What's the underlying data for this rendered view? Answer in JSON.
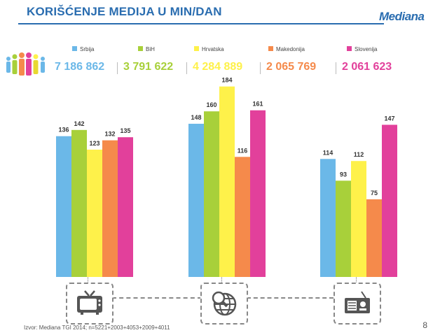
{
  "header": {
    "title": "KORIŠĆENJE MEDIJA U MIN/DAN",
    "logo_text": "Mediana"
  },
  "footer": {
    "source": "Izvor: Mediana TGI 2014; n=5221+2003+4053+2009+4011",
    "page_number": "8"
  },
  "colors": {
    "title": "#2a6db0",
    "Srbija": "#6bb8e8",
    "BiH": "#a8d03a",
    "Hrvatska": "#fef14a",
    "Makedonija": "#f58a4b",
    "Slovenija": "#e2409b"
  },
  "totals": [
    {
      "country": "Srbija",
      "value": "7 186 862"
    },
    {
      "country": "BiH",
      "value": "3 791 622"
    },
    {
      "country": "Hrvatska",
      "value": "4 284 889"
    },
    {
      "country": "Makedonija",
      "value": "2 065 769"
    },
    {
      "country": "Slovenija",
      "value": "2 061 623"
    }
  ],
  "media_icons": [
    "tv-icon",
    "internet-globe-icon",
    "radio-icon"
  ],
  "chart_data": {
    "type": "bar",
    "title": "KORIŠĆENJE MEDIJA U MIN/DAN",
    "xlabel": "",
    "ylabel": "",
    "ylim": [
      0,
      200
    ],
    "grid": false,
    "legend_position": "top",
    "categories": [
      "TV",
      "Internet",
      "Radio"
    ],
    "series": [
      {
        "name": "Srbija",
        "values": [
          136,
          148,
          114
        ]
      },
      {
        "name": "BiH",
        "values": [
          142,
          160,
          93
        ]
      },
      {
        "name": "Hrvatska",
        "values": [
          123,
          184,
          112
        ]
      },
      {
        "name": "Makedonija",
        "values": [
          132,
          116,
          75
        ]
      },
      {
        "name": "Slovenija",
        "values": [
          135,
          161,
          147
        ]
      }
    ]
  }
}
